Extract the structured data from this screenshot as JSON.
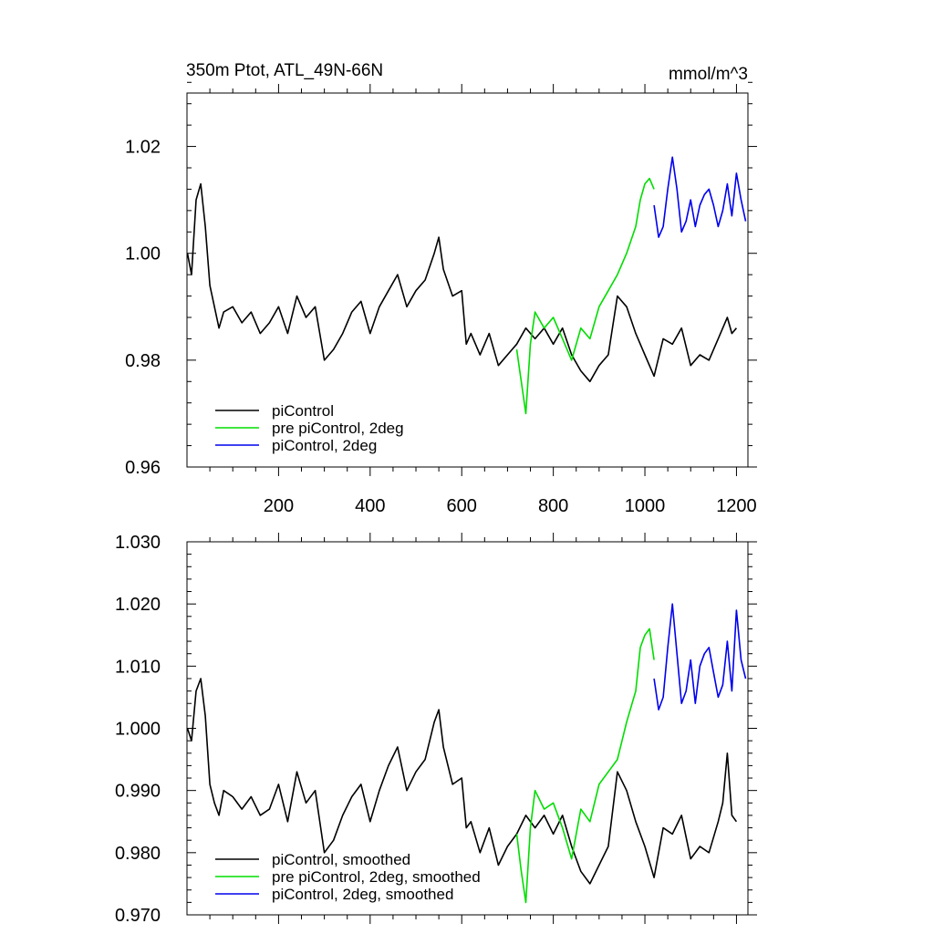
{
  "figure": {
    "title_left": "350m Ptot, ATL_49N-66N",
    "title_right": "mmol/m^3"
  },
  "chart_data": [
    {
      "type": "line",
      "panel": "raw",
      "xlim": [
        0,
        1225
      ],
      "ylim": [
        0.96,
        1.03
      ],
      "x_ticks": [
        200,
        400,
        600,
        800,
        1000,
        1200
      ],
      "x_tick_labels": [
        "200",
        "400",
        "600",
        "800",
        "1000",
        "1200"
      ],
      "y_ticks": [
        0.96,
        0.98,
        1.0,
        1.02
      ],
      "y_tick_labels": [
        "0.96",
        "0.98",
        "1.00",
        "1.02"
      ],
      "grid": false,
      "legend_position": "bottom-left",
      "series": [
        {
          "name": "piControl",
          "color": "#000000",
          "x": [
            1,
            10,
            20,
            30,
            40,
            50,
            60,
            70,
            80,
            100,
            120,
            140,
            160,
            180,
            200,
            220,
            240,
            260,
            280,
            300,
            320,
            340,
            360,
            380,
            400,
            420,
            440,
            460,
            480,
            500,
            520,
            540,
            550,
            560,
            580,
            600,
            610,
            620,
            640,
            660,
            680,
            700,
            720,
            740,
            760,
            780,
            800,
            820,
            840,
            860,
            880,
            900,
            920,
            940,
            960,
            980,
            1000,
            1020,
            1040,
            1060,
            1080,
            1100,
            1120,
            1140,
            1160,
            1170,
            1180,
            1190,
            1200
          ],
          "y": [
            1.0,
            0.996,
            1.01,
            1.013,
            1.005,
            0.994,
            0.99,
            0.986,
            0.989,
            0.99,
            0.987,
            0.989,
            0.985,
            0.987,
            0.99,
            0.985,
            0.992,
            0.988,
            0.99,
            0.98,
            0.982,
            0.985,
            0.989,
            0.991,
            0.985,
            0.99,
            0.993,
            0.996,
            0.99,
            0.993,
            0.995,
            1.0,
            1.003,
            0.997,
            0.992,
            0.993,
            0.983,
            0.985,
            0.981,
            0.985,
            0.979,
            0.981,
            0.983,
            0.986,
            0.984,
            0.986,
            0.983,
            0.986,
            0.981,
            0.978,
            0.976,
            0.979,
            0.981,
            0.992,
            0.99,
            0.985,
            0.981,
            0.977,
            0.984,
            0.983,
            0.986,
            0.979,
            0.981,
            0.98,
            0.984,
            0.986,
            0.988,
            0.985,
            0.986
          ]
        },
        {
          "name": "pre piControl, 2deg",
          "color": "#00dd00",
          "x": [
            720,
            730,
            740,
            750,
            760,
            780,
            800,
            820,
            840,
            860,
            880,
            900,
            920,
            940,
            960,
            980,
            990,
            1000,
            1010,
            1020
          ],
          "y": [
            0.982,
            0.976,
            0.97,
            0.983,
            0.989,
            0.986,
            0.988,
            0.984,
            0.98,
            0.986,
            0.984,
            0.99,
            0.993,
            0.996,
            1.0,
            1.005,
            1.01,
            1.013,
            1.014,
            1.012
          ]
        },
        {
          "name": "piControl, 2deg",
          "color": "#0000ee",
          "x": [
            1020,
            1030,
            1040,
            1050,
            1060,
            1070,
            1080,
            1090,
            1100,
            1110,
            1120,
            1130,
            1140,
            1150,
            1160,
            1170,
            1180,
            1190,
            1200,
            1210,
            1220
          ],
          "y": [
            1.009,
            1.003,
            1.005,
            1.012,
            1.018,
            1.012,
            1.004,
            1.006,
            1.01,
            1.005,
            1.009,
            1.011,
            1.012,
            1.009,
            1.005,
            1.008,
            1.013,
            1.007,
            1.015,
            1.01,
            1.006
          ]
        }
      ]
    },
    {
      "type": "line",
      "panel": "smoothed",
      "xlim": [
        0,
        1225
      ],
      "ylim": [
        0.97,
        1.03
      ],
      "x_ticks": [
        200,
        400,
        600,
        800,
        1000,
        1200
      ],
      "y_ticks": [
        0.97,
        0.98,
        0.99,
        1.0,
        1.01,
        1.02,
        1.03
      ],
      "y_tick_labels": [
        "0.970",
        "0.980",
        "0.990",
        "1.000",
        "1.010",
        "1.020",
        "1.030"
      ],
      "grid": false,
      "legend_position": "bottom-left",
      "series": [
        {
          "name": "piControl, smoothed",
          "color": "#000000",
          "x": [
            1,
            10,
            20,
            30,
            40,
            50,
            60,
            70,
            80,
            100,
            120,
            140,
            160,
            180,
            200,
            220,
            240,
            260,
            280,
            300,
            320,
            340,
            360,
            380,
            400,
            420,
            440,
            460,
            480,
            500,
            520,
            540,
            550,
            560,
            580,
            600,
            610,
            620,
            640,
            660,
            680,
            700,
            720,
            740,
            760,
            780,
            800,
            820,
            840,
            860,
            880,
            900,
            920,
            940,
            960,
            980,
            1000,
            1020,
            1040,
            1060,
            1080,
            1100,
            1120,
            1140,
            1160,
            1170,
            1180,
            1190,
            1200
          ],
          "y": [
            1.0,
            0.998,
            1.006,
            1.008,
            1.002,
            0.991,
            0.988,
            0.986,
            0.99,
            0.989,
            0.987,
            0.989,
            0.986,
            0.987,
            0.991,
            0.985,
            0.993,
            0.988,
            0.99,
            0.98,
            0.982,
            0.986,
            0.989,
            0.991,
            0.985,
            0.99,
            0.994,
            0.997,
            0.99,
            0.993,
            0.995,
            1.001,
            1.003,
            0.997,
            0.991,
            0.992,
            0.984,
            0.985,
            0.98,
            0.984,
            0.978,
            0.981,
            0.983,
            0.986,
            0.984,
            0.986,
            0.983,
            0.986,
            0.981,
            0.977,
            0.975,
            0.978,
            0.981,
            0.993,
            0.99,
            0.985,
            0.981,
            0.976,
            0.984,
            0.983,
            0.986,
            0.979,
            0.981,
            0.98,
            0.985,
            0.988,
            0.996,
            0.986,
            0.985
          ]
        },
        {
          "name": "pre piControl, 2deg, smoothed",
          "color": "#00dd00",
          "x": [
            720,
            730,
            740,
            750,
            760,
            780,
            800,
            820,
            840,
            860,
            880,
            900,
            920,
            940,
            960,
            980,
            990,
            1000,
            1010,
            1020
          ],
          "y": [
            0.983,
            0.977,
            0.972,
            0.984,
            0.99,
            0.987,
            0.988,
            0.984,
            0.979,
            0.987,
            0.985,
            0.991,
            0.993,
            0.995,
            1.001,
            1.006,
            1.013,
            1.015,
            1.016,
            1.011
          ]
        },
        {
          "name": "piControl, 2deg, smoothed",
          "color": "#0000ee",
          "x": [
            1020,
            1030,
            1040,
            1050,
            1060,
            1070,
            1080,
            1090,
            1100,
            1110,
            1120,
            1130,
            1140,
            1150,
            1160,
            1170,
            1180,
            1190,
            1200,
            1210,
            1220
          ],
          "y": [
            1.008,
            1.003,
            1.005,
            1.013,
            1.02,
            1.012,
            1.004,
            1.006,
            1.011,
            1.004,
            1.01,
            1.012,
            1.013,
            1.009,
            1.005,
            1.007,
            1.014,
            1.006,
            1.019,
            1.011,
            1.008
          ]
        }
      ]
    }
  ]
}
